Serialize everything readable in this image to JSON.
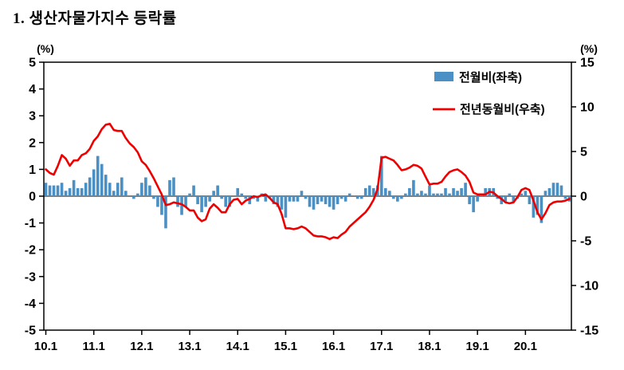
{
  "title": "1. 생산자물가지수 등락률",
  "chart_data": {
    "type": "bar+line",
    "title": "1. 생산자물가지수 등락률",
    "x_unit": "month",
    "x_range": "2010.01 - 2020.12",
    "x_tick_labels": [
      "10.1",
      "11.1",
      "12.1",
      "13.1",
      "14.1",
      "15.1",
      "16.1",
      "17.1",
      "18.1",
      "19.1",
      "20.1"
    ],
    "left_axis": {
      "unit": "(%)",
      "min": -5,
      "max": 5,
      "ticks": [
        5,
        4,
        3,
        2,
        1,
        0,
        -1,
        -2,
        -3,
        -4,
        -5
      ]
    },
    "right_axis": {
      "unit": "(%)",
      "min": -15,
      "max": 15,
      "ticks": [
        15,
        10,
        5,
        0,
        -5,
        -10,
        -15
      ]
    },
    "grid": false,
    "legend_position": "top-right-inside",
    "series": [
      {
        "name": "전월비(좌축)",
        "kind": "bar",
        "axis": "left",
        "color": "#4a90c4",
        "values": [
          0.5,
          0.4,
          0.4,
          0.4,
          0.5,
          0.2,
          0.3,
          0.6,
          0.3,
          0.3,
          0.5,
          0.7,
          1.0,
          1.5,
          1.2,
          0.8,
          0.5,
          0.2,
          0.5,
          0.7,
          0.2,
          0.0,
          -0.1,
          0.1,
          0.5,
          0.7,
          0.4,
          -0.1,
          -0.4,
          -0.7,
          -1.2,
          0.6,
          0.7,
          -0.4,
          -0.7,
          -0.4,
          0.1,
          0.4,
          -0.3,
          -0.6,
          -0.4,
          -0.2,
          0.2,
          0.4,
          -0.1,
          -0.4,
          -0.4,
          0.0,
          0.3,
          0.1,
          -0.1,
          -0.3,
          -0.1,
          -0.2,
          0.1,
          -0.2,
          -0.1,
          -0.3,
          -0.4,
          -0.5,
          -0.8,
          -0.2,
          -0.2,
          -0.2,
          0.2,
          -0.1,
          -0.4,
          -0.5,
          -0.3,
          -0.2,
          -0.3,
          -0.4,
          -0.5,
          -0.3,
          -0.1,
          -0.2,
          0.1,
          0.0,
          -0.1,
          -0.1,
          0.3,
          0.4,
          0.3,
          0.4,
          1.5,
          0.3,
          0.2,
          -0.1,
          -0.2,
          -0.1,
          0.1,
          0.3,
          0.6,
          0.1,
          0.2,
          0.1,
          0.4,
          0.1,
          0.1,
          0.1,
          0.3,
          0.1,
          0.3,
          0.2,
          0.3,
          0.5,
          -0.3,
          -0.6,
          -0.2,
          0.1,
          0.3,
          0.3,
          0.3,
          -0.1,
          -0.3,
          -0.2,
          0.1,
          -0.2,
          -0.1,
          0.1,
          0.2,
          -0.3,
          -0.8,
          -0.7,
          -1.0,
          0.2,
          0.3,
          0.5,
          0.5,
          0.4,
          -0.1,
          -0.2
        ]
      },
      {
        "name": "전년동월비(우축)",
        "kind": "line",
        "axis": "right",
        "color": "#ee0000",
        "values": [
          3.0,
          2.6,
          2.4,
          3.4,
          4.6,
          4.2,
          3.4,
          4.0,
          4.0,
          4.6,
          4.8,
          5.3,
          6.2,
          6.7,
          7.5,
          8.0,
          8.1,
          7.4,
          7.3,
          7.3,
          6.5,
          5.9,
          5.5,
          4.9,
          3.9,
          3.5,
          2.8,
          2.0,
          1.1,
          0.2,
          -1.0,
          -0.9,
          -0.7,
          -0.8,
          -0.9,
          -1.2,
          -1.6,
          -1.6,
          -2.4,
          -2.8,
          -2.6,
          -1.4,
          -0.9,
          -1.3,
          -1.8,
          -1.8,
          -0.9,
          -0.4,
          -0.3,
          -0.9,
          -0.5,
          -0.3,
          0.0,
          -0.1,
          0.1,
          0.2,
          -0.2,
          -0.7,
          -0.9,
          -2.0,
          -3.6,
          -3.6,
          -3.7,
          -3.6,
          -3.4,
          -3.6,
          -4.0,
          -4.4,
          -4.5,
          -4.5,
          -4.6,
          -4.8,
          -4.6,
          -4.7,
          -4.3,
          -4.0,
          -3.4,
          -3.0,
          -2.6,
          -2.2,
          -1.8,
          -1.2,
          -0.4,
          0.8,
          4.3,
          4.4,
          4.2,
          4.0,
          3.5,
          2.9,
          3.0,
          3.2,
          3.5,
          3.4,
          3.1,
          2.2,
          1.3,
          1.4,
          1.4,
          1.6,
          2.2,
          2.7,
          2.9,
          3.0,
          2.7,
          2.3,
          1.6,
          0.4,
          0.2,
          0.2,
          0.2,
          0.5,
          0.4,
          0.0,
          -0.3,
          -0.7,
          -0.8,
          -0.7,
          -0.1,
          0.7,
          0.9,
          0.7,
          -0.5,
          -1.8,
          -2.6,
          -1.9,
          -1.0,
          -0.7,
          -0.6,
          -0.6,
          -0.5,
          -0.3
        ]
      }
    ]
  }
}
